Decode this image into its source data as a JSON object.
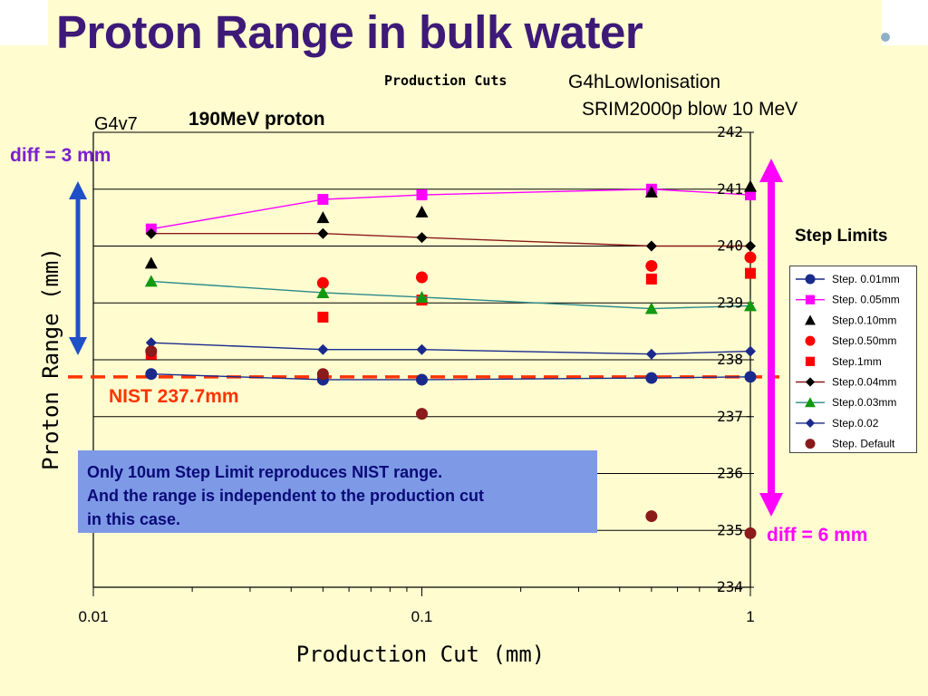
{
  "slide": {
    "title": "Proton Range in bulk water",
    "label_production_cuts": "Production Cuts",
    "label_g4hlow": "G4hLowIonisation",
    "label_srim": "SRIM2000p blow 10 MeV",
    "label_g4v7": "G4v7",
    "label_proton": "190MeV proton",
    "label_diff3": "diff = 3 mm",
    "label_diff6": "diff = 6 mm",
    "label_nist": "NIST  237.7mm",
    "label_step_limits": "Step Limits",
    "note_lines": [
      "Only  10um Step Limit reproduces NIST range.",
      "And the range is independent to the production cut",
      "in this case."
    ],
    "colors": {
      "title": "#3d1a78",
      "background": "#fffdd0",
      "note_box": "#7e9ae6",
      "diff3_arrow": "#1f50c8",
      "diff6_arrow": "#ff00ff",
      "nist_line": "#ff3300",
      "label_purple": "#7b1fd0"
    }
  },
  "chart_data": {
    "type": "line",
    "xlabel": "Production Cut (mm)",
    "ylabel": "Proton Range (mm)",
    "x_scale": "log",
    "xlim": [
      0.01,
      1
    ],
    "ylim": [
      234,
      242
    ],
    "x_ticks": [
      "0.01",
      "0.1",
      "1"
    ],
    "y_ticks": [
      "234",
      "235",
      "236",
      "237",
      "238",
      "239",
      "240",
      "241",
      "242"
    ],
    "x": [
      0.015,
      0.05,
      0.1,
      0.5,
      1
    ],
    "grid": "horizontal",
    "legend_position": "right",
    "reference_line": {
      "label": "NIST  237.7mm",
      "value": 237.7
    },
    "series": [
      {
        "name": "Step. 0.01mm",
        "marker": "circle",
        "color": "#1a2a8c",
        "line": true,
        "values": [
          237.75,
          237.65,
          237.65,
          237.68,
          237.7
        ]
      },
      {
        "name": "Step. 0.05mm",
        "marker": "square",
        "color": "#ff00ff",
        "line": true,
        "values": [
          240.3,
          240.82,
          240.9,
          241.0,
          240.9
        ]
      },
      {
        "name": "Step.0.10mm",
        "marker": "triangle",
        "color": "#000000",
        "line": false,
        "values": [
          239.7,
          240.5,
          240.6,
          240.95,
          241.05
        ]
      },
      {
        "name": "Step.0.50mm",
        "marker": "circle",
        "color": "#ff0000",
        "line": false,
        "values": [
          null,
          239.35,
          239.45,
          239.65,
          239.8
        ]
      },
      {
        "name": "Step.1mm",
        "marker": "square",
        "color": "#ff0000",
        "line": false,
        "values": [
          238.1,
          238.75,
          239.05,
          239.42,
          239.52
        ]
      },
      {
        "name": "Step.0.04mm",
        "marker": "diamond",
        "color": "#000000",
        "line": true,
        "line_color": "#8b1a1a",
        "values": [
          240.22,
          240.22,
          240.15,
          240.0,
          240.0
        ]
      },
      {
        "name": "Step.0.03mm",
        "marker": "triangle",
        "color": "#119911",
        "line": true,
        "line_color": "#2a8a8a",
        "values": [
          239.38,
          239.18,
          239.1,
          238.9,
          238.95
        ]
      },
      {
        "name": "Step.0.02",
        "marker": "diamond",
        "color": "#1a2a8c",
        "line": true,
        "values": [
          238.3,
          238.18,
          238.18,
          238.1,
          238.15
        ]
      },
      {
        "name": "Step. Default",
        "marker": "circle",
        "color": "#8b1a1a",
        "line": false,
        "values": [
          238.15,
          237.75,
          237.05,
          235.25,
          234.95
        ]
      }
    ]
  }
}
